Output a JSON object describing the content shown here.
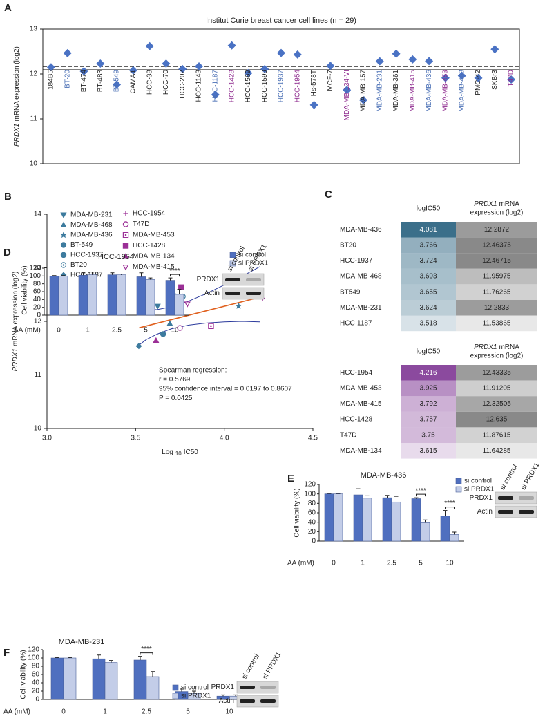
{
  "chart_data": [
    {
      "type": "dot",
      "panel_label": "A",
      "title": "Institut Curie breast cancer cell lines (n = 29)",
      "ylabel": [
        {
          "text": "PRDX1",
          "italic": true
        },
        {
          "text": "mRNA expression (log2)"
        }
      ],
      "categories": [
        "184B5",
        "BT-20",
        "BT-474",
        "BT-483",
        "BT-549",
        "CAMA1",
        "HCC-38",
        "HCC-70",
        "HCC-202",
        "HCC-1143",
        "HCC-1187",
        "HCC-1428",
        "HCC-1569",
        "HCC-1599",
        "HCC-1937",
        "HCC-1954",
        "Hs-578T",
        "MCF-7",
        "MDA-MB-134-VI",
        "MDA-MB-157",
        "MDA-MB-231",
        "MDA-MB-361",
        "MDA-MB-415",
        "MDA-MB-436",
        "MDA-MB-453",
        "MDA-MB-468",
        "PMC-42",
        "SKBr3",
        "T47D"
      ],
      "values": [
        12.15,
        12.46375,
        12.06,
        12.23,
        11.76265,
        12.08,
        12.62,
        12.23,
        12.11,
        12.17,
        11.53865,
        12.635,
        12.02,
        12.11,
        12.46715,
        12.43335,
        11.31,
        12.18,
        11.64285,
        11.42,
        12.2833,
        12.45,
        12.32505,
        12.2872,
        11.91205,
        11.95975,
        11.91,
        12.55,
        11.87615
      ],
      "label_colors": [
        "#222222",
        "#4a6fb5",
        "#222222",
        "#222222",
        "#4a6fb5",
        "#222222",
        "#222222",
        "#222222",
        "#222222",
        "#222222",
        "#4a6fb5",
        "#8e2a8e",
        "#222222",
        "#222222",
        "#4a6fb5",
        "#8e2a8e",
        "#222222",
        "#222222",
        "#8e2a8e",
        "#222222",
        "#4a6fb5",
        "#222222",
        "#8e2a8e",
        "#4a6fb5",
        "#8e2a8e",
        "#4a6fb5",
        "#222222",
        "#222222",
        "#8e2a8e"
      ],
      "color": "#4a72c4",
      "ylim": [
        10,
        13
      ],
      "yticks": [
        10,
        11,
        12,
        13
      ],
      "reference_lines": [
        {
          "value": 12.17,
          "style": "dashed"
        },
        {
          "value": 12.09,
          "style": "solid"
        }
      ]
    },
    {
      "type": "scatter",
      "panel_label": "B",
      "ylabel": [
        {
          "text": "PRDX1",
          "italic": true
        },
        {
          "text": "mRNA expression (log2)"
        }
      ],
      "xlabel": {
        "main": "Log",
        "sub": "10",
        "tail": "IC50"
      },
      "xlim": [
        3,
        4.5
      ],
      "xticks": [
        {
          "value": 3,
          "label": "3.0"
        },
        3.5,
        {
          "value": 4,
          "label": "4.0"
        },
        4.5
      ],
      "ylim": [
        10,
        14
      ],
      "yticks": [
        10,
        11,
        12,
        13,
        14
      ],
      "series": [
        {
          "name": "MDA-MB-231",
          "color": "#3d7b9e",
          "marker": "triangle-down",
          "x": [
            3.624
          ],
          "values": [
            12.2833
          ]
        },
        {
          "name": "MDA-MB-468",
          "color": "#3d7b9e",
          "marker": "triangle-up",
          "x": [
            3.693
          ],
          "values": [
            11.95975
          ]
        },
        {
          "name": "MDA-MB-436",
          "color": "#3d7b9e",
          "marker": "star",
          "x": [
            4.081
          ],
          "values": [
            12.2872
          ]
        },
        {
          "name": "BT-549",
          "color": "#3d7b9e",
          "marker": "circle",
          "x": [
            3.655
          ],
          "values": [
            11.76265
          ]
        },
        {
          "name": "HCC-1937",
          "color": "#3d7b9e",
          "marker": "circle-dot",
          "x": [
            3.724
          ],
          "values": [
            12.46715
          ]
        },
        {
          "name": "BT20",
          "color": "#3d7b9e",
          "marker": "circle-open-dot",
          "x": [
            3.766
          ],
          "values": [
            12.46375
          ]
        },
        {
          "name": "HCC-1187",
          "color": "#3d7b9e",
          "marker": "diamond",
          "x": [
            3.518
          ],
          "values": [
            11.53865
          ]
        },
        {
          "name": "HCC-1954",
          "color": "#9b2f96",
          "marker": "plus",
          "x": [
            4.216
          ],
          "values": [
            12.43335
          ]
        },
        {
          "name": "T47D",
          "color": "#9b2f96",
          "marker": "circle-open",
          "x": [
            3.75
          ],
          "values": [
            11.87615
          ]
        },
        {
          "name": "MDA-MB-453",
          "color": "#9b2f96",
          "marker": "square-open-dot",
          "x": [
            3.925
          ],
          "values": [
            11.91205
          ]
        },
        {
          "name": "HCC-1428",
          "color": "#9b2f96",
          "marker": "square",
          "x": [
            3.757
          ],
          "values": [
            12.635
          ]
        },
        {
          "name": "MDA-MB-134",
          "color": "#9b2f96",
          "marker": "triangle-up",
          "x": [
            3.615
          ],
          "values": [
            11.64285
          ]
        },
        {
          "name": "MDA-MB-415",
          "color": "#9b2f96",
          "marker": "triangle-down-open",
          "x": [
            3.792
          ],
          "values": [
            12.32505
          ]
        }
      ],
      "fit_lines": [
        {
          "color": "#e0601e",
          "x": [
            3.52,
            4.2
          ],
          "values": [
            11.88,
            12.45
          ]
        },
        {
          "color": "#2b3a9c",
          "x": [
            3.52,
            3.56,
            3.62,
            3.7,
            3.8,
            3.9,
            4.0,
            4.1,
            4.2
          ],
          "values": [
            12.25,
            12.23,
            12.22,
            12.27,
            12.38,
            12.52,
            12.68,
            12.84,
            13.02
          ]
        },
        {
          "color": "#2b3a9c",
          "x": [
            3.52,
            3.56,
            3.62,
            3.7,
            3.8,
            3.9,
            4.0,
            4.1,
            4.2
          ],
          "values": [
            11.56,
            11.66,
            11.76,
            11.86,
            11.93,
            11.97,
            11.99,
            12.0,
            11.99
          ]
        }
      ],
      "annotations": [
        "Spearman regression:",
        "r = 0.5769",
        "95% confidence interval = 0.0197 to 0.8607",
        "P = 0.0425"
      ]
    },
    {
      "type": "bar",
      "panel_label": "D",
      "title": "HCC-1954",
      "ylabel": "Cell viability (%)",
      "xlabel": "AA (mM)",
      "categories": [
        "0",
        "1",
        "2.5",
        "5",
        "10"
      ],
      "ylim": [
        0,
        120
      ],
      "yticks": [
        0,
        20,
        40,
        60,
        80,
        100,
        120
      ],
      "series": [
        {
          "name": "si control",
          "color": "#4f6fbf",
          "values": [
            100,
            102,
            103,
            98,
            89
          ],
          "errors": [
            1,
            6,
            5,
            10,
            6
          ]
        },
        {
          "name": "si PRDX1",
          "color": "#c3cde8",
          "values": [
            100,
            103,
            103,
            91,
            53
          ],
          "errors": [
            1,
            7,
            2,
            4,
            13
          ]
        }
      ],
      "significance_labels": [
        null,
        null,
        null,
        null,
        "****"
      ],
      "blot": {
        "lanes": [
          "si control",
          "si PRDX1"
        ],
        "rows": [
          "PRDX1",
          "Actin"
        ]
      }
    },
    {
      "type": "bar",
      "panel_label": "E",
      "title": "MDA-MB-436",
      "ylabel": "Cell viability (%)",
      "xlabel": "AA (mM)",
      "categories": [
        "0",
        "1",
        "2.5",
        "5",
        "10"
      ],
      "ylim": [
        0,
        120
      ],
      "yticks": [
        0,
        20,
        40,
        60,
        80,
        100,
        120
      ],
      "series": [
        {
          "name": "si control",
          "color": "#4f6fbf",
          "values": [
            100,
            98,
            92,
            90,
            53
          ],
          "errors": [
            1,
            13,
            5,
            2,
            12
          ]
        },
        {
          "name": "si PRDX1",
          "color": "#c3cde8",
          "values": [
            100,
            91,
            83,
            39,
            14
          ],
          "errors": [
            1,
            5,
            12,
            6,
            5
          ]
        }
      ],
      "significance_labels": [
        null,
        null,
        null,
        "****",
        "****"
      ],
      "blot": {
        "lanes": [
          "si control",
          "si PRDX1"
        ],
        "rows": [
          "PRDX1",
          "Actin"
        ]
      }
    },
    {
      "type": "bar",
      "panel_label": "F",
      "title": "MDA-MB-231",
      "ylabel": "Cell viability (%)",
      "xlabel": "AA (mM)",
      "categories": [
        "0",
        "1",
        "2.5",
        "5",
        "10"
      ],
      "ylim": [
        0,
        120
      ],
      "yticks": [
        0,
        20,
        40,
        60,
        80,
        100,
        120
      ],
      "series": [
        {
          "name": "si control",
          "color": "#4f6fbf",
          "values": [
            100,
            98,
            95,
            19,
            8
          ],
          "errors": [
            1,
            9,
            9,
            6,
            3
          ]
        },
        {
          "name": "si PRDX1",
          "color": "#c3cde8",
          "values": [
            100,
            89,
            55,
            14,
            8
          ],
          "errors": [
            1,
            5,
            12,
            6,
            3
          ]
        }
      ],
      "significance_labels": [
        null,
        null,
        "****",
        null,
        null
      ],
      "blot": {
        "lanes": [
          "si control",
          "si PRDX1"
        ],
        "rows": [
          "PRDX1",
          "Actin"
        ]
      }
    }
  ],
  "tables": [
    {
      "panel_label": "C",
      "color": "#3b6f8a",
      "header": {
        "col1": "logIC50",
        "col2_italic": "PRDX1",
        "col2_line1": "mRNA",
        "col2_line2": "expression (log2)"
      },
      "rows": [
        [
          "MDA-MB-436",
          4.081,
          12.2872
        ],
        [
          "BT20",
          3.766,
          12.46375
        ],
        [
          "HCC-1937",
          3.724,
          12.46715
        ],
        [
          "MDA-MB-468",
          3.693,
          11.95975
        ],
        [
          "BT549",
          3.655,
          11.76265
        ],
        [
          "MDA-MB-231",
          3.624,
          12.2833
        ],
        [
          "HCC-1187",
          3.518,
          11.53865
        ]
      ]
    },
    {
      "color": "#8b4a9e",
      "header": {
        "col1": "logIC50",
        "col2_italic": "PRDX1",
        "col2_line1": "mRNA",
        "col2_line2": "expression (log2)"
      },
      "rows": [
        [
          "HCC-1954",
          4.216,
          12.43335
        ],
        [
          "MDA-MB-453",
          3.925,
          11.91205
        ],
        [
          "MDA-MB-415",
          3.792,
          12.32505
        ],
        [
          "HCC-1428",
          3.757,
          12.635
        ],
        [
          "T47D",
          3.75,
          11.87615
        ],
        [
          "MDA-MB-134",
          3.615,
          11.64285
        ]
      ]
    }
  ]
}
